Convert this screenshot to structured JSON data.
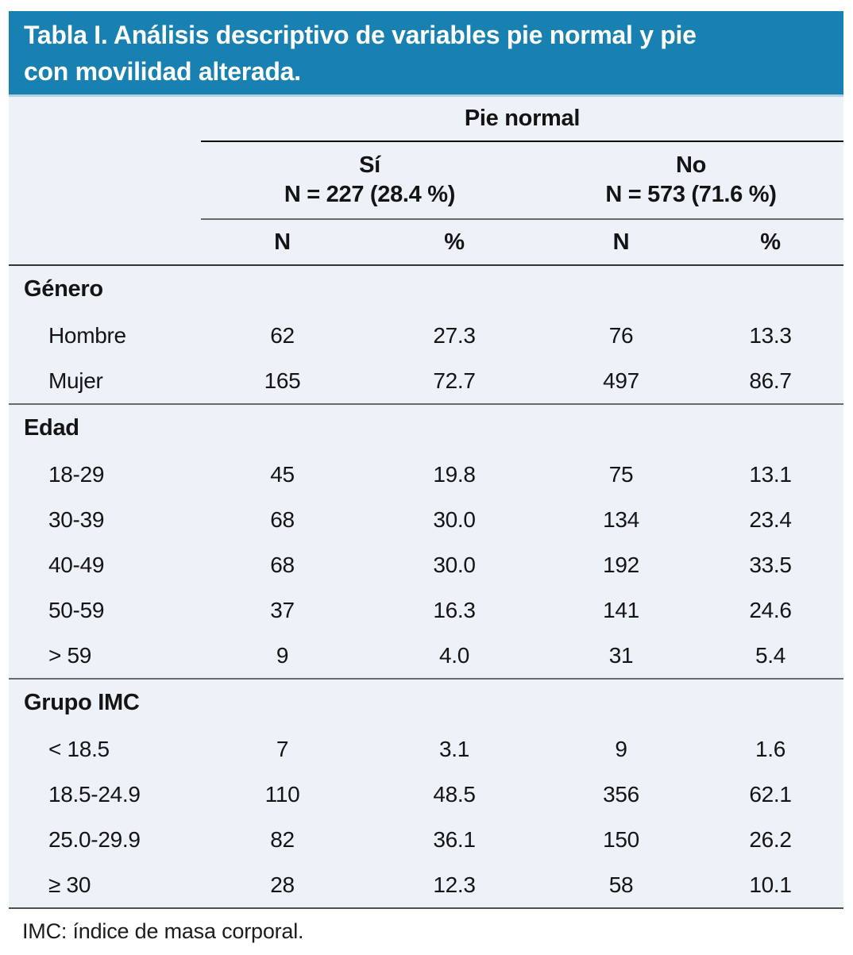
{
  "title": {
    "lines": [
      "Tabla I. Análisis descriptivo de variables pie normal y pie",
      "con movilidad alterada."
    ],
    "full": "Tabla I. Análisis descriptivo de variables pie normal y pie con movilidad alterada."
  },
  "colors": {
    "header_bg": "#1881b1",
    "table_bg": "#edf1f8",
    "header_text": "#ffffff"
  },
  "table": {
    "group_header": "Pie normal",
    "subgroups": [
      {
        "label": "Sí",
        "n_label": "N = 227 (28.4 %)"
      },
      {
        "label": "No",
        "n_label": "N = 573 (71.6 %)"
      }
    ],
    "col_headers": [
      "N",
      "%",
      "N",
      "%"
    ],
    "sections": [
      {
        "label": "Género",
        "rows": [
          {
            "label": "Hombre",
            "values": [
              "62",
              "27.3",
              "76",
              "13.3"
            ]
          },
          {
            "label": "Mujer",
            "values": [
              "165",
              "72.7",
              "497",
              "86.7"
            ]
          }
        ]
      },
      {
        "label": "Edad",
        "rows": [
          {
            "label": "18-29",
            "values": [
              "45",
              "19.8",
              "75",
              "13.1"
            ]
          },
          {
            "label": "30-39",
            "values": [
              "68",
              "30.0",
              "134",
              "23.4"
            ]
          },
          {
            "label": "40-49",
            "values": [
              "68",
              "30.0",
              "192",
              "33.5"
            ]
          },
          {
            "label": "50-59",
            "values": [
              "37",
              "16.3",
              "141",
              "24.6"
            ]
          },
          {
            "label": "> 59",
            "values": [
              "9",
              "4.0",
              "31",
              "5.4"
            ]
          }
        ]
      },
      {
        "label": "Grupo IMC",
        "rows": [
          {
            "label": "< 18.5",
            "values": [
              "7",
              "3.1",
              "9",
              "1.6"
            ]
          },
          {
            "label": "18.5-24.9",
            "values": [
              "110",
              "48.5",
              "356",
              "62.1"
            ]
          },
          {
            "label": "25.0-29.9",
            "values": [
              "82",
              "36.1",
              "150",
              "26.2"
            ]
          },
          {
            "label": "≥ 30",
            "values": [
              "28",
              "12.3",
              "58",
              "10.1"
            ]
          }
        ]
      }
    ],
    "footnote": "IMC: índice de masa corporal."
  }
}
